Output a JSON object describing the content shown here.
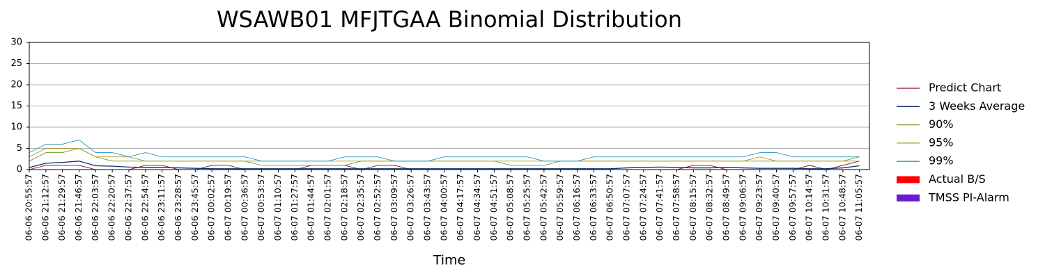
{
  "chart_data": {
    "type": "line",
    "title": "WSAWB01 MFJTGAA Binomial Distribution",
    "x_label": "Time",
    "categories": [
      "06-06 20:55:57",
      "06-06 21:12:57",
      "06-06 21:29:57",
      "06-06 21:46:57",
      "06-06 22:03:57",
      "06-06 22:20:57",
      "06-06 22:37:57",
      "06-06 22:54:57",
      "06-06 23:11:57",
      "06-06 23:28:57",
      "06-06 23:45:57",
      "06-07 00:02:57",
      "06-07 00:19:57",
      "06-07 00:36:57",
      "06-07 00:53:57",
      "06-07 01:10:57",
      "06-07 01:27:57",
      "06-07 01:44:57",
      "06-07 02:01:57",
      "06-07 02:18:57",
      "06-07 02:35:57",
      "06-07 02:52:57",
      "06-07 03:09:57",
      "06-07 03:26:57",
      "06-07 03:43:57",
      "06-07 04:00:57",
      "06-07 04:17:57",
      "06-07 04:34:57",
      "06-07 04:51:57",
      "06-07 05:08:57",
      "06-07 05:25:57",
      "06-07 05:42:57",
      "06-07 05:59:57",
      "06-07 06:16:57",
      "06-07 06:33:57",
      "06-07 06:50:57",
      "06-07 07:07:57",
      "06-07 07:24:57",
      "06-07 07:41:57",
      "06-07 07:58:57",
      "06-07 08:15:57",
      "06-07 08:32:57",
      "06-07 08:49:57",
      "06-07 09:06:57",
      "06-07 09:23:57",
      "06-07 09:40:57",
      "06-07 09:57:57",
      "06-07 10:14:57",
      "06-07 10:31:57",
      "06-07 10:48:57",
      "06-07 11:05:57"
    ],
    "ylim": [
      0,
      30
    ],
    "yticks": [
      0,
      5,
      10,
      15,
      20,
      25,
      30
    ],
    "grid": true,
    "legend": "right",
    "series": [
      {
        "name": "Predict Chart",
        "color": "#8b0a1a",
        "values": [
          0,
          1,
          1,
          1,
          0,
          0,
          0,
          1,
          1,
          0,
          0,
          1,
          1,
          0,
          0,
          0,
          0,
          1,
          1,
          1,
          0,
          1,
          1,
          0,
          0,
          0,
          0,
          0,
          0,
          0,
          0,
          0,
          0,
          0,
          0,
          0,
          0,
          0,
          0,
          0,
          1,
          1,
          0,
          0,
          0,
          0,
          0,
          1,
          0,
          1,
          2
        ]
      },
      {
        "name": "3 Weeks Average",
        "color": "#0b2f6b",
        "values": [
          0.5,
          1.5,
          1.7,
          2,
          0.9,
          0.8,
          0.6,
          0.5,
          0.5,
          0.4,
          0.3,
          0.2,
          0.2,
          0.2,
          0.2,
          0.2,
          0.2,
          0.2,
          0.2,
          0.2,
          0.2,
          0.2,
          0.2,
          0.2,
          0.2,
          0.2,
          0.2,
          0.2,
          0.2,
          0.2,
          0.2,
          0.2,
          0.2,
          0.2,
          0.2,
          0.2,
          0.4,
          0.5,
          0.6,
          0.5,
          0.4,
          0.4,
          0.5,
          0.4,
          0.3,
          0.3,
          0.3,
          0.2,
          0.2,
          0.4,
          0.9
        ]
      },
      {
        "name": "90%",
        "color": "#6f9a2a",
        "values": [
          2,
          4,
          4,
          5,
          3,
          2,
          2,
          2,
          2,
          2,
          2,
          2,
          2,
          2,
          1,
          1,
          1,
          1,
          1,
          1,
          2,
          2,
          2,
          2,
          2,
          2,
          2,
          2,
          2,
          1,
          1,
          1,
          2,
          2,
          2,
          2,
          2,
          2,
          2,
          2,
          2,
          2,
          2,
          2,
          2,
          2,
          2,
          2,
          2,
          2,
          3
        ]
      },
      {
        "name": "95%",
        "color": "#a89a2a",
        "values": [
          3,
          5,
          5,
          5,
          3,
          3,
          3,
          2,
          2,
          2,
          2,
          2,
          2,
          2,
          2,
          2,
          2,
          2,
          2,
          2,
          2,
          2,
          2,
          2,
          2,
          2,
          2,
          2,
          2,
          2,
          2,
          2,
          2,
          2,
          2,
          2,
          2,
          2,
          2,
          2,
          2,
          2,
          2,
          2,
          3,
          2,
          2,
          2,
          2,
          2,
          2
        ]
      },
      {
        "name": "99%",
        "color": "#2b93c4",
        "values": [
          4,
          6,
          6,
          7,
          4,
          4,
          3,
          4,
          3,
          3,
          3,
          3,
          3,
          3,
          2,
          2,
          2,
          2,
          2,
          3,
          3,
          3,
          2,
          2,
          2,
          3,
          3,
          3,
          3,
          3,
          3,
          2,
          2,
          2,
          3,
          3,
          3,
          3,
          3,
          3,
          3,
          3,
          3,
          3,
          4,
          4,
          3,
          3,
          3,
          3,
          3
        ]
      },
      {
        "name": "Actual B/S",
        "color": "#ff0000",
        "kind": "bar",
        "values": [
          0,
          0,
          0,
          0,
          0,
          0,
          0,
          0,
          0,
          0,
          0,
          0,
          0,
          0,
          0,
          0,
          0,
          0,
          0,
          0,
          0,
          0,
          0,
          0,
          0,
          0,
          0,
          0,
          0,
          0,
          0,
          0,
          0,
          0,
          0,
          0,
          0,
          0,
          0,
          0,
          0,
          0,
          0,
          0,
          0,
          0,
          0,
          0,
          0,
          0,
          0
        ]
      },
      {
        "name": "TMSS PI-Alarm",
        "color": "#6a1bd0",
        "kind": "bar",
        "values": [
          0,
          0,
          0,
          0,
          0,
          0,
          0,
          0,
          0,
          0,
          0,
          0,
          0,
          0,
          0,
          0,
          0,
          0,
          0,
          0,
          0,
          0,
          0,
          0,
          0,
          0,
          0,
          0,
          0,
          0,
          0,
          0,
          0,
          0,
          0,
          0,
          0,
          0,
          0,
          0,
          0,
          0,
          0,
          0,
          0,
          0,
          0,
          0,
          0,
          0,
          0
        ]
      }
    ]
  }
}
